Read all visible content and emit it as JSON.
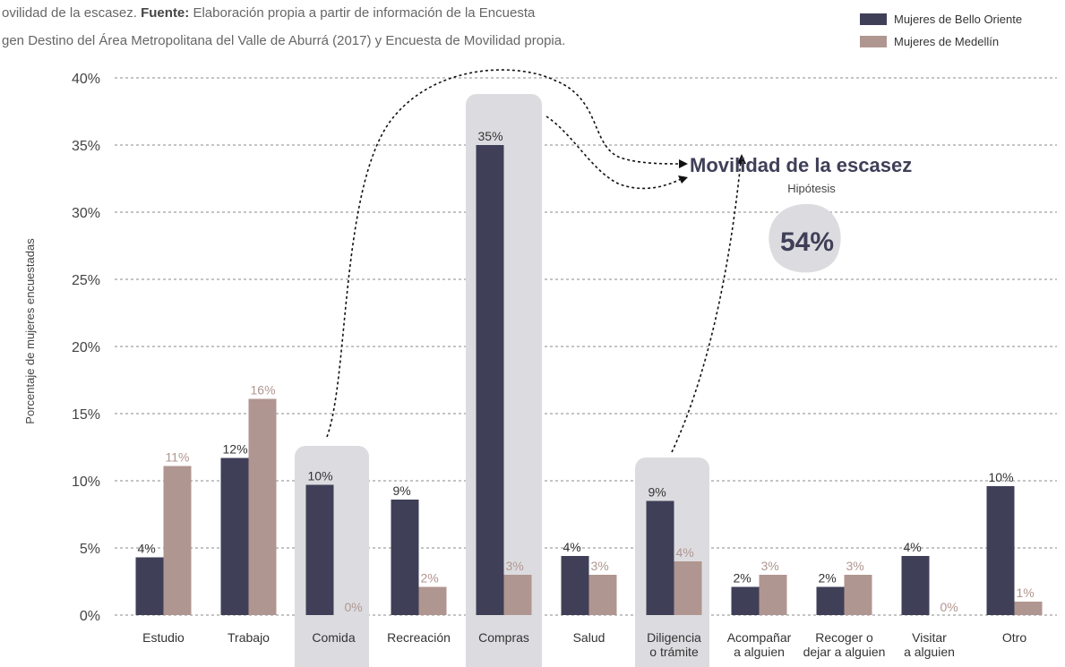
{
  "chart_data": {
    "type": "bar",
    "caption": [
      "ovilidad de la escasez.",
      "Fuente:",
      "Elaboración propia a partir de información de la Encuesta",
      "gen Destino del Área Metropolitana del Valle de Aburrá (2017) y Encuesta de Movilidad propia."
    ],
    "ylabel": "Porcentaje de mujeres encuestadas",
    "categories": [
      "Estudio",
      "Trabajo",
      "Comida",
      "Recreación",
      "Compras",
      "Salud",
      "Diligencia\no trámite",
      "Acompañar\na alguien",
      "Recoger o\ndejar a alguien",
      "Visitar\na alguien",
      "Otro"
    ],
    "series": [
      {
        "name": "Mujeres de Bello Oriente",
        "color": "#3f3f58",
        "values": [
          4.3,
          11.7,
          9.7,
          8.6,
          35,
          4.4,
          8.5,
          2.1,
          2.1,
          4.4,
          9.6
        ],
        "value_labels": [
          "4%",
          "12%",
          "10%",
          "9%",
          "35%",
          "4%",
          "9%",
          "2%",
          "2%",
          "4%",
          "10%"
        ]
      },
      {
        "name": "Mujeres de Medellín",
        "color": "#b09690",
        "values": [
          11.1,
          16.1,
          0,
          2.1,
          3,
          3,
          4,
          3,
          3,
          0,
          1
        ],
        "value_labels": [
          "11%",
          "16%",
          "0%",
          "2%",
          "3%",
          "3%",
          "4%",
          "3%",
          "3%",
          "0%",
          "1%"
        ]
      }
    ],
    "ylim": [
      0,
      40
    ],
    "yticks": [
      {
        "value": 0,
        "label": "0%"
      },
      {
        "value": 5,
        "label": "5%"
      },
      {
        "value": 10,
        "label": "10%"
      },
      {
        "value": 15,
        "label": "15%"
      },
      {
        "value": 20,
        "label": "20%"
      },
      {
        "value": 25,
        "label": "25%"
      },
      {
        "value": 30,
        "label": "30%"
      },
      {
        "value": 35,
        "label": "35%"
      },
      {
        "value": 40,
        "label": "40%"
      }
    ],
    "grid": true,
    "legend": "top-right",
    "annotations": [
      "Movilidad de la escasez",
      "Hipótesis",
      "54%"
    ]
  }
}
